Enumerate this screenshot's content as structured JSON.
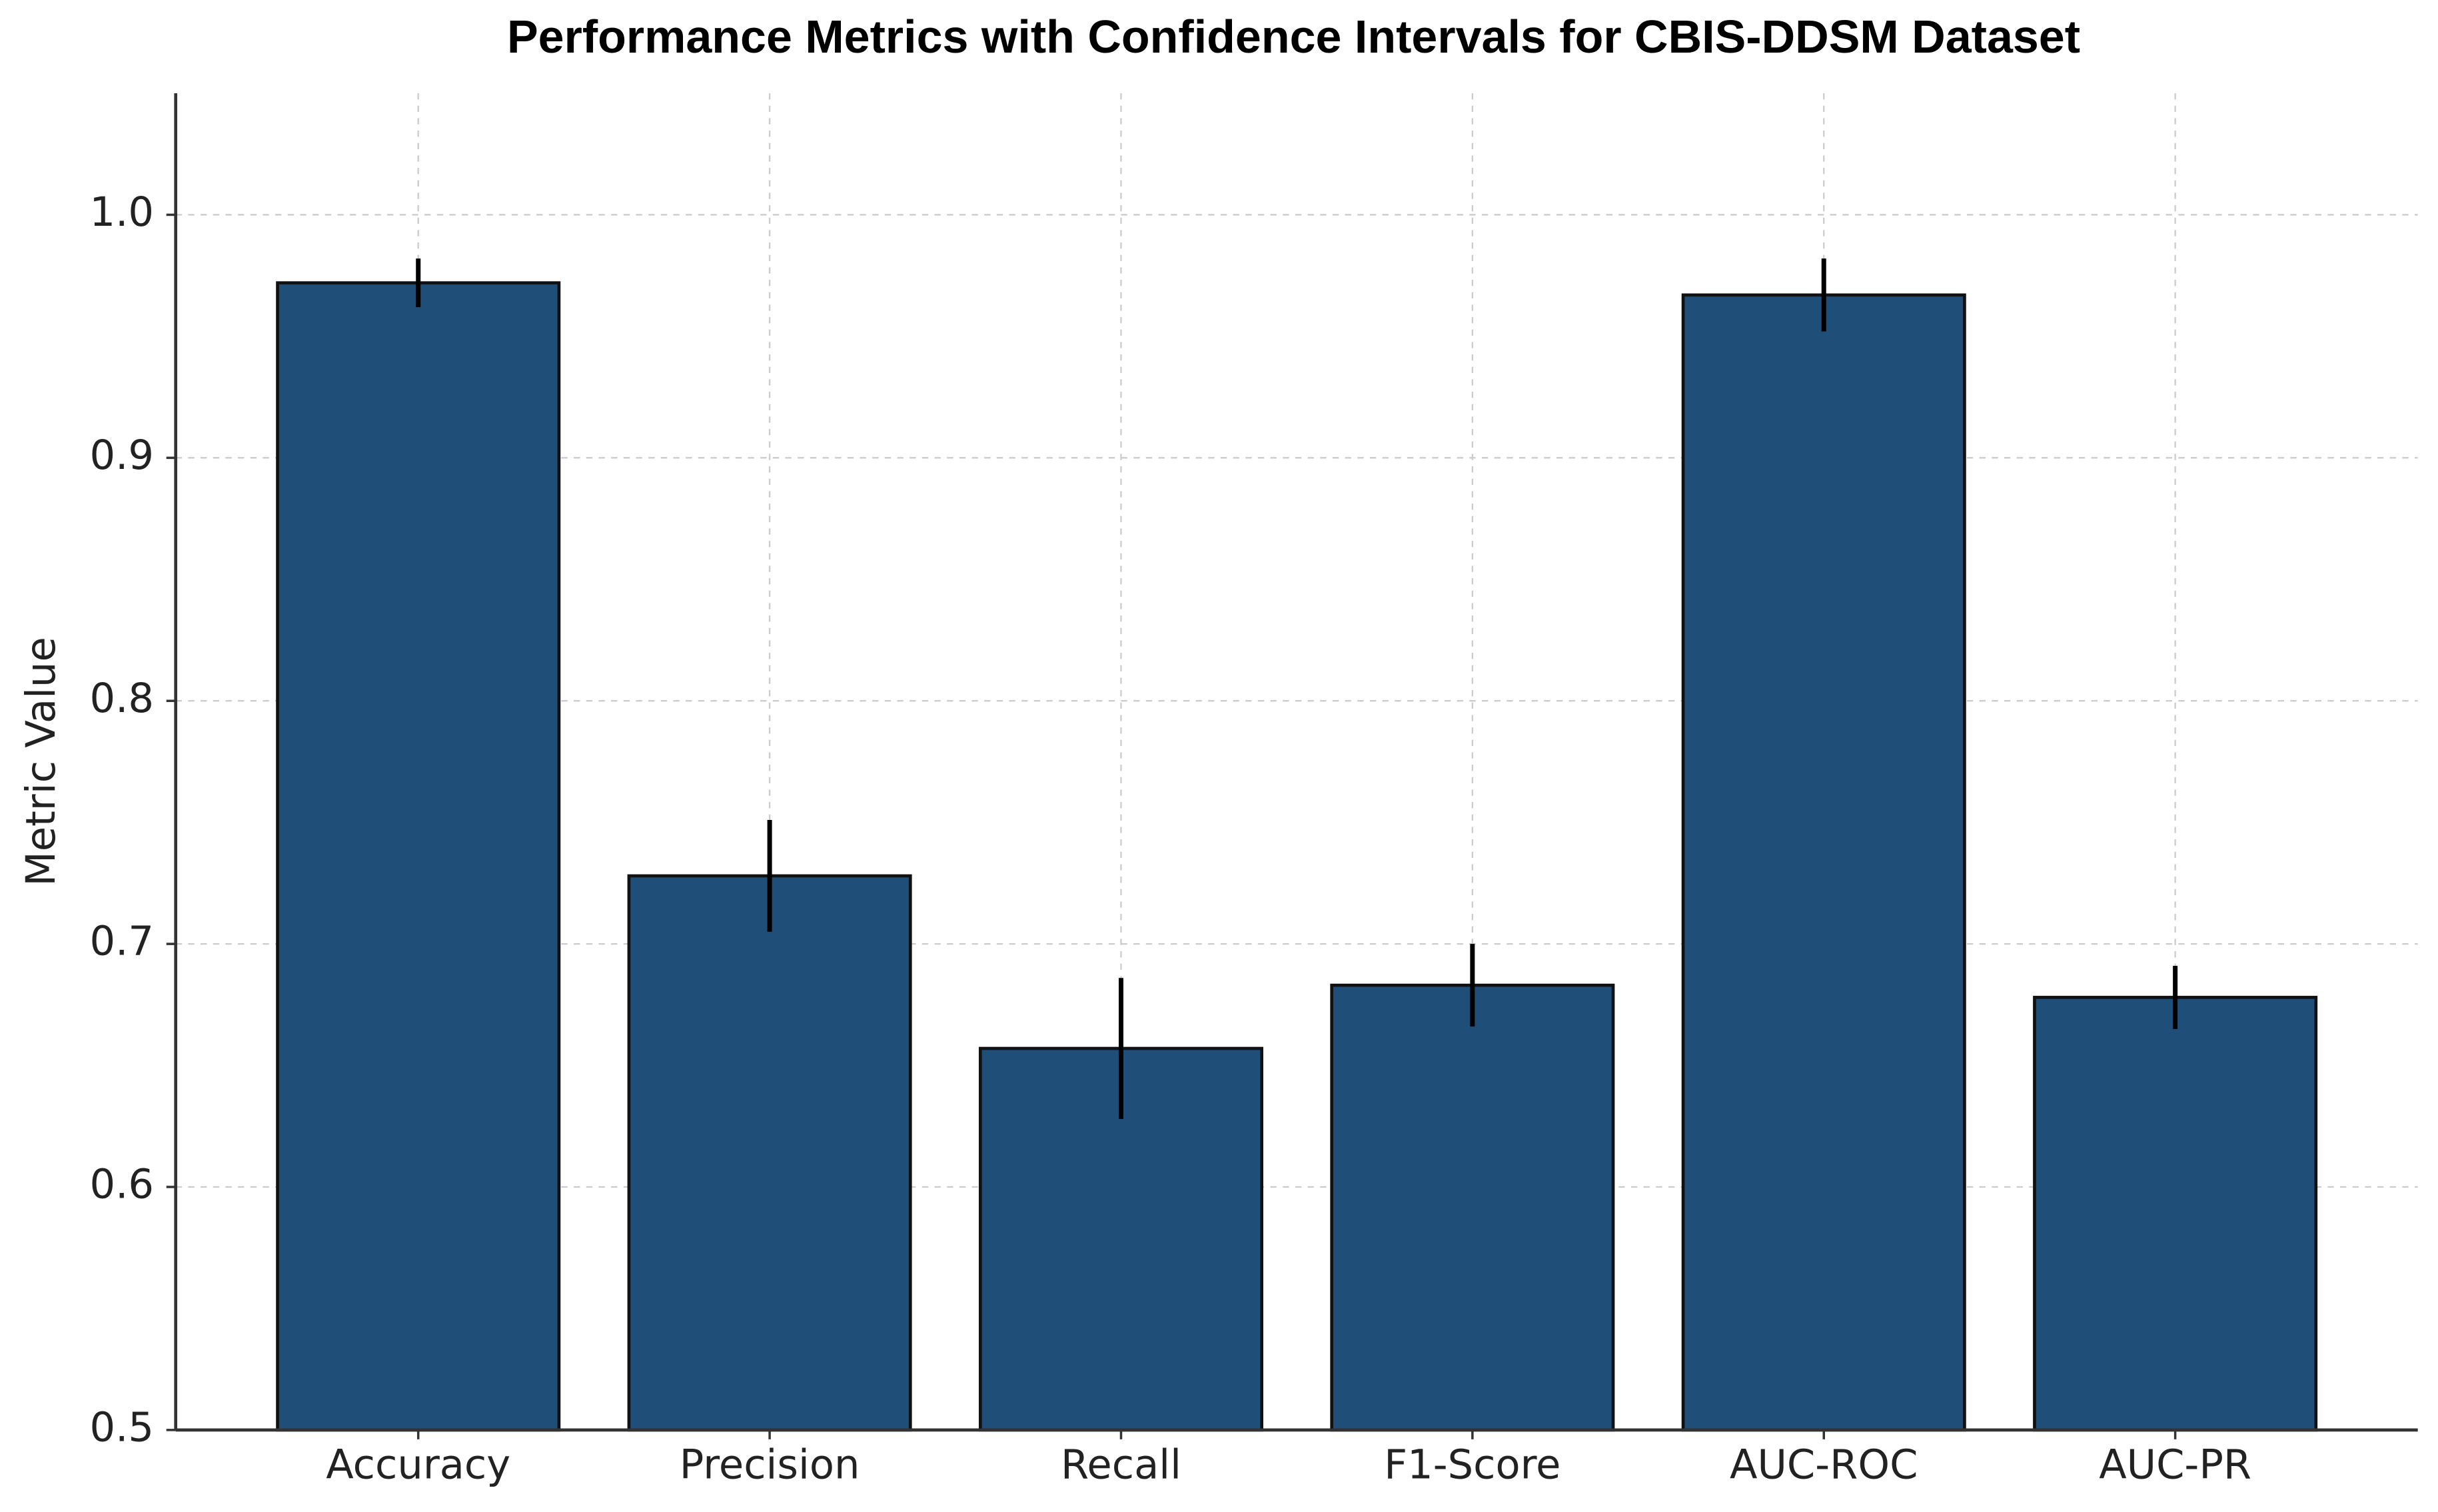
{
  "chart_data": {
    "type": "bar",
    "title": "Performance Metrics with Confidence Intervals for CBIS-DDSM Dataset",
    "y_label": "Metric Value",
    "categories": [
      "Accuracy",
      "Precision",
      "Recall",
      "F1-Score",
      "AUC-ROC",
      "AUC-PR"
    ],
    "values": [
      0.972,
      0.728,
      0.657,
      0.683,
      0.967,
      0.678
    ],
    "errors": [
      0.01,
      0.023,
      0.029,
      0.017,
      0.015,
      0.013
    ],
    "color": "#1f4e79",
    "ylim": [
      0.5,
      1.05
    ],
    "yticks": [
      0.5,
      0.6,
      0.7,
      0.8,
      0.9,
      {
        "value": 1.0,
        "label": "1.0"
      }
    ],
    "grid": true
  }
}
